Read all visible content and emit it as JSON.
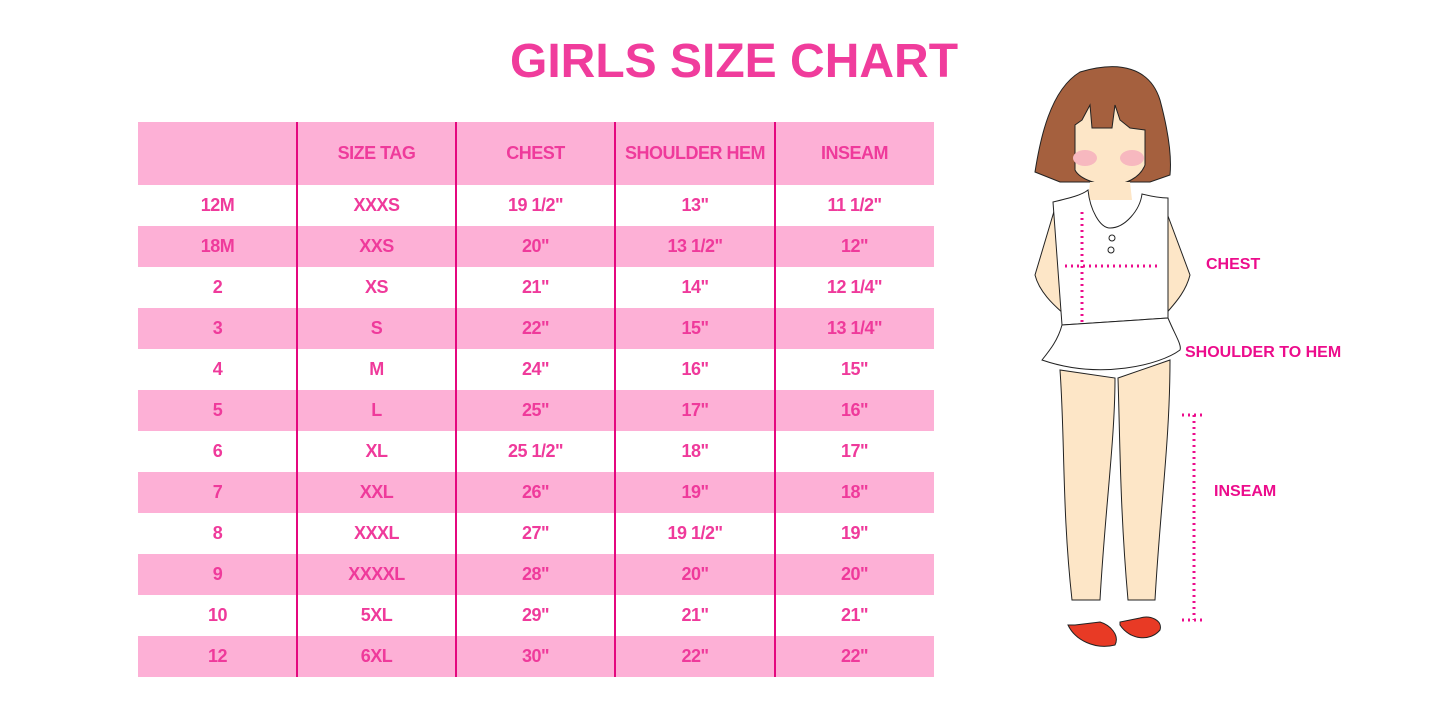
{
  "title": "GIRLS SIZE CHART",
  "table": {
    "headers": [
      "",
      "SIZE TAG",
      "CHEST",
      "SHOULDER HEM",
      "INSEAM"
    ],
    "rows": [
      [
        "12M",
        "XXXS",
        "19 1/2\"",
        "13\"",
        "11 1/2\""
      ],
      [
        "18M",
        "XXS",
        "20\"",
        "13 1/2\"",
        "12\""
      ],
      [
        "2",
        "XS",
        "21\"",
        "14\"",
        "12 1/4\""
      ],
      [
        "3",
        "S",
        "22\"",
        "15\"",
        "13 1/4\""
      ],
      [
        "4",
        "M",
        "24\"",
        "16\"",
        "15\""
      ],
      [
        "5",
        "L",
        "25\"",
        "17\"",
        "16\""
      ],
      [
        "6",
        "XL",
        "25 1/2\"",
        "18\"",
        "17\""
      ],
      [
        "7",
        "XXL",
        "26\"",
        "19\"",
        "18\""
      ],
      [
        "8",
        "XXXL",
        "27\"",
        "19 1/2\"",
        "19\""
      ],
      [
        "9",
        "XXXXL",
        "28\"",
        "20\"",
        "20\""
      ],
      [
        "10",
        "5XL",
        "29\"",
        "21\"",
        "21\""
      ],
      [
        "12",
        "6XL",
        "30\"",
        "22\"",
        "22\""
      ]
    ]
  },
  "figure": {
    "labels": {
      "chest": "CHEST",
      "shoulder": "SHOULDER TO HEM",
      "inseam": "INSEAM"
    }
  },
  "colors": {
    "accent": "#ef3a9b",
    "stripe": "#fdb0d6",
    "divider": "#e4087f"
  }
}
